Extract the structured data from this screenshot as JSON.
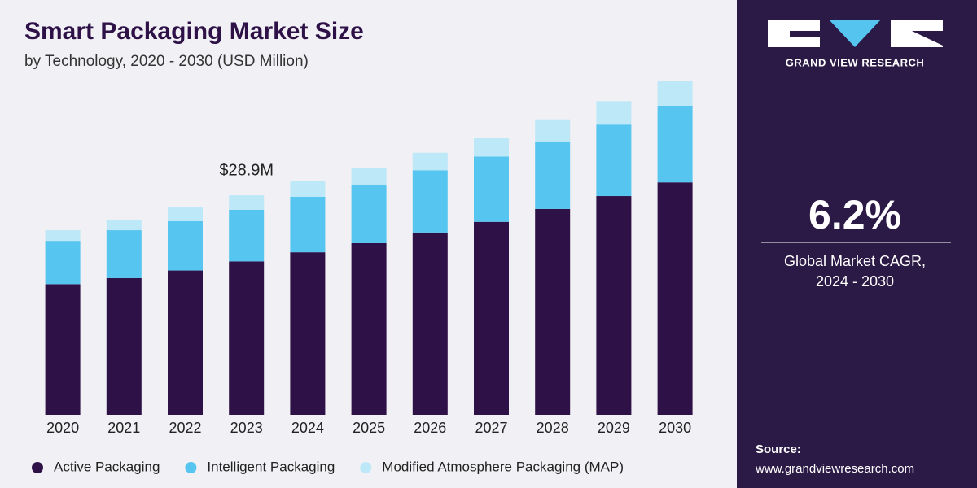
{
  "chart_data": {
    "type": "stacked_bar",
    "title": "Smart Packaging Market Size",
    "subtitle": "by Technology, 2020 - 2030 (USD Million)",
    "categories": [
      "2020",
      "2021",
      "2022",
      "2023",
      "2024",
      "2025",
      "2026",
      "2027",
      "2028",
      "2029",
      "2030"
    ],
    "series": [
      {
        "name": "Active Packaging",
        "color": "#2e1247",
        "values": [
          17.2,
          18.0,
          19.0,
          20.2,
          21.4,
          22.6,
          24.0,
          25.4,
          27.1,
          28.8,
          30.6
        ]
      },
      {
        "name": "Intelligent Packaging",
        "color": "#56c5ef",
        "values": [
          5.7,
          6.3,
          6.5,
          6.8,
          7.3,
          7.6,
          8.2,
          8.6,
          8.9,
          9.4,
          10.1
        ]
      },
      {
        "name": "Modified Atmosphere Packaging (MAP)",
        "color": "#bde8f8",
        "values": [
          1.4,
          1.4,
          1.8,
          1.9,
          2.1,
          2.3,
          2.3,
          2.4,
          2.9,
          3.1,
          3.2
        ]
      }
    ],
    "annotation": {
      "category": "2023",
      "value": 28.9,
      "label": "$28.9M"
    },
    "legend": "bottom"
  },
  "sidebar": {
    "brand": "GRAND VIEW RESEARCH",
    "cagr": "6.2%",
    "cagr_caption": [
      "Global Market CAGR,",
      "2024 - 2030"
    ],
    "source_title": "Source:",
    "source_url": "www.grandviewresearch.com"
  }
}
